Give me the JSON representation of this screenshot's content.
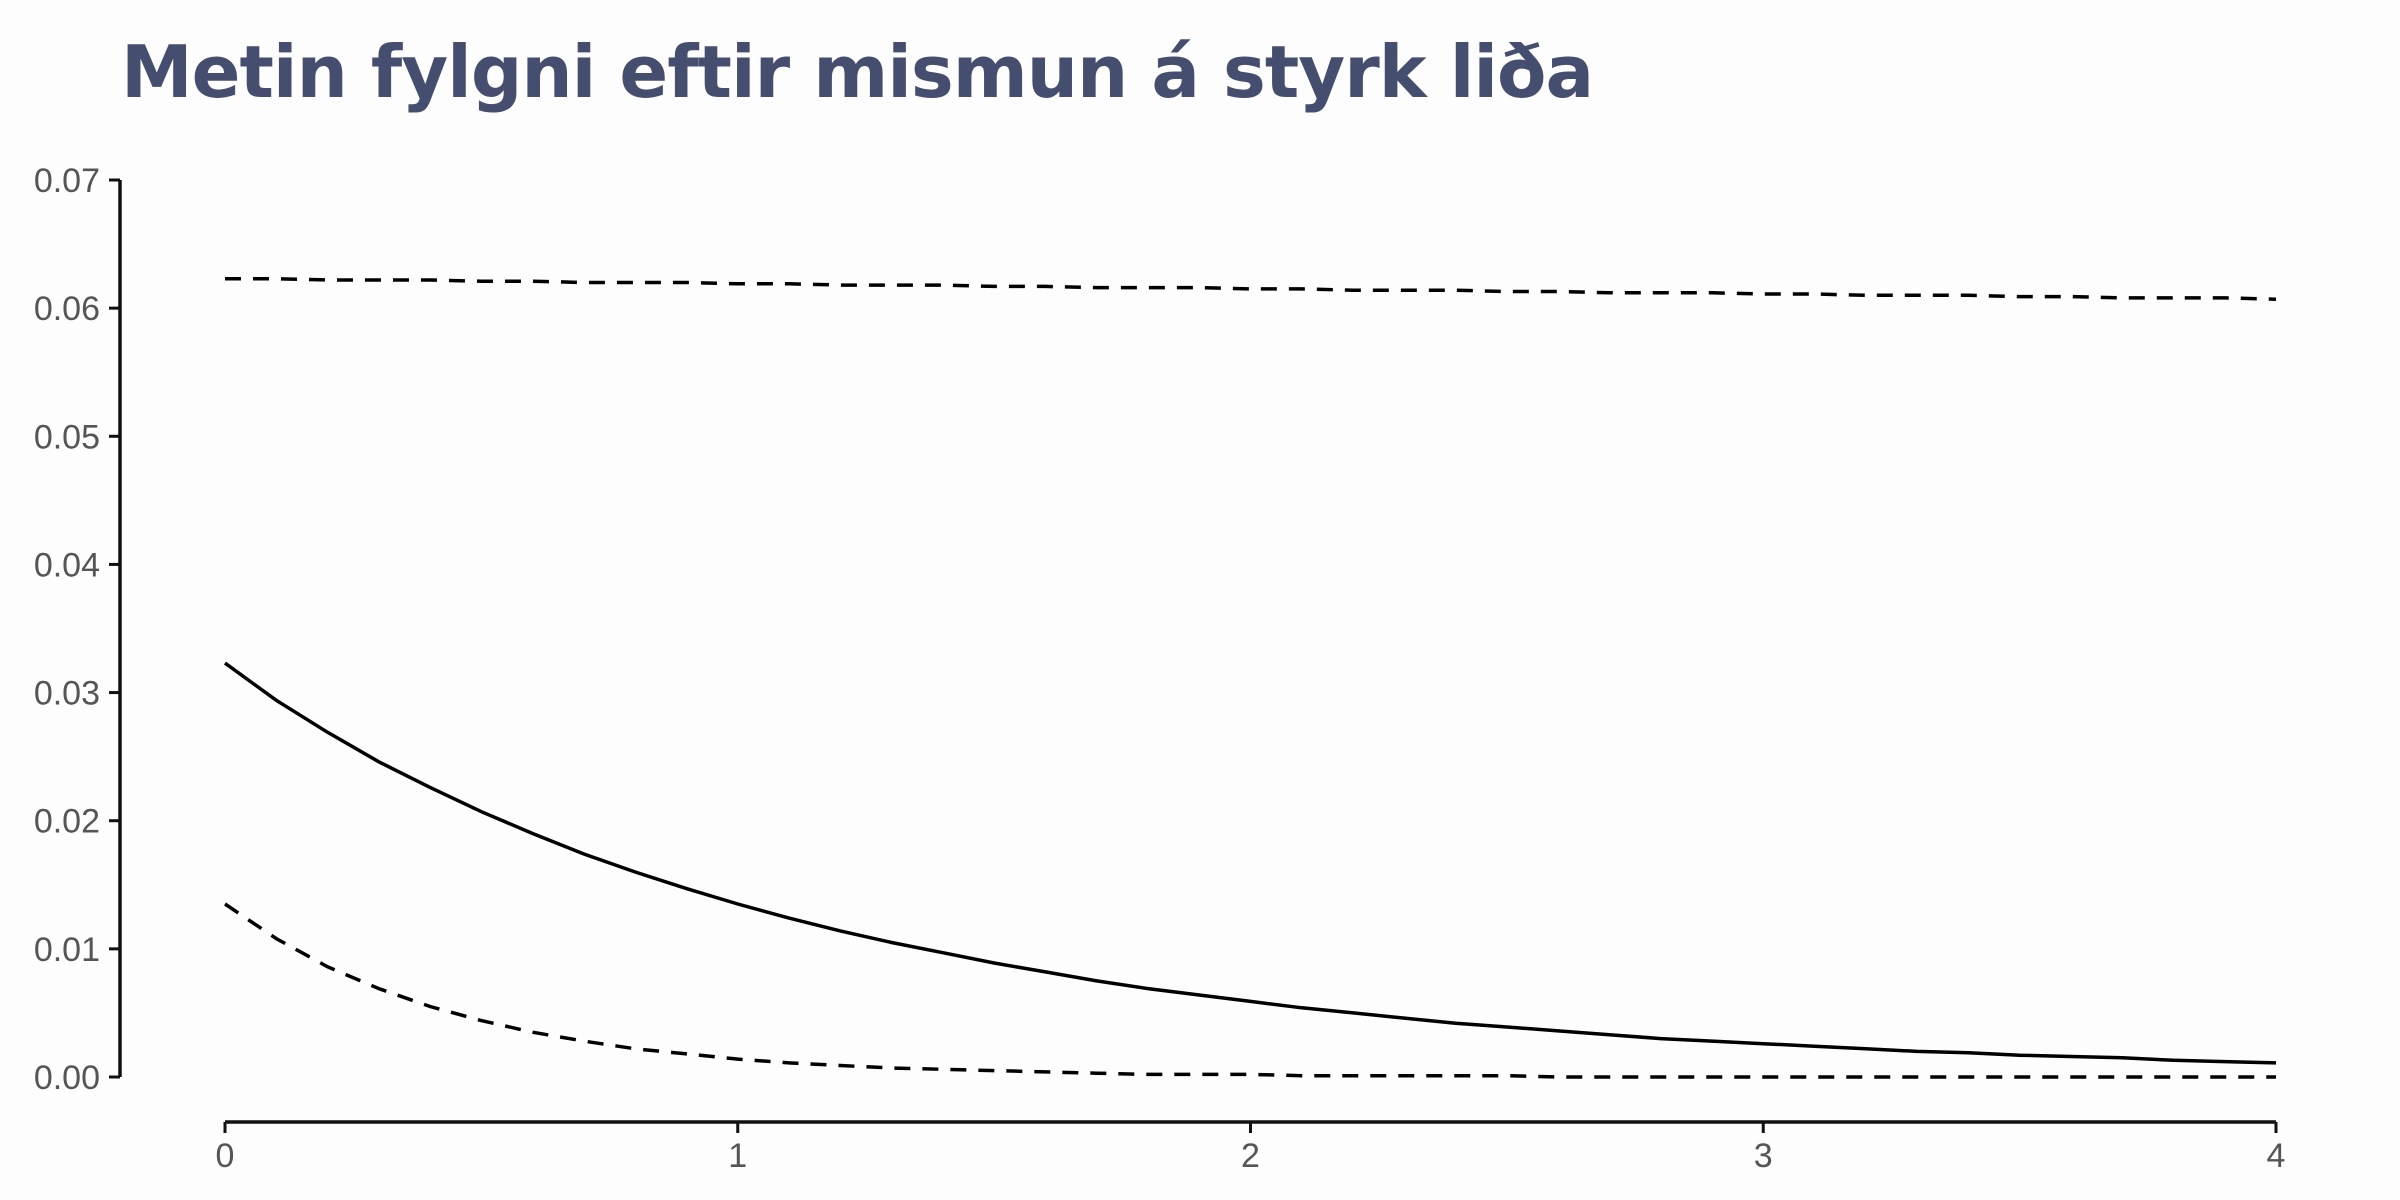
{
  "chart_data": {
    "type": "line",
    "title": "Metin fylgni eftir mismun á styrk liða",
    "xlabel": "",
    "ylabel": "",
    "xlim": [
      0,
      4
    ],
    "ylim": [
      0,
      0.07
    ],
    "x_ticks": [
      "0",
      "1",
      "2",
      "3",
      "4"
    ],
    "y_ticks": [
      "0.00",
      "0.01",
      "0.02",
      "0.03",
      "0.04",
      "0.05",
      "0.06",
      "0.07"
    ],
    "grid": false,
    "legend": "none",
    "x": [
      0,
      0.1,
      0.2,
      0.3,
      0.4,
      0.5,
      0.6,
      0.7,
      0.8,
      0.9,
      1.0,
      1.1,
      1.2,
      1.3,
      1.4,
      1.5,
      1.6,
      1.7,
      1.8,
      1.9,
      2.0,
      2.1,
      2.2,
      2.3,
      2.4,
      2.5,
      2.6,
      2.7,
      2.8,
      2.9,
      3.0,
      3.1,
      3.2,
      3.3,
      3.4,
      3.5,
      3.6,
      3.7,
      3.8,
      3.9,
      4.0
    ],
    "series": [
      {
        "style": "dashed",
        "color": "#000000",
        "values": [
          0.0623,
          0.0623,
          0.0622,
          0.0622,
          0.0622,
          0.0621,
          0.0621,
          0.062,
          0.062,
          0.062,
          0.0619,
          0.0619,
          0.0618,
          0.0618,
          0.0618,
          0.0617,
          0.0617,
          0.0616,
          0.0616,
          0.0616,
          0.0615,
          0.0615,
          0.0614,
          0.0614,
          0.0614,
          0.0613,
          0.0613,
          0.0612,
          0.0612,
          0.0612,
          0.0611,
          0.0611,
          0.061,
          0.061,
          0.061,
          0.0609,
          0.0609,
          0.0608,
          0.0608,
          0.0608,
          0.0607
        ]
      },
      {
        "style": "solid",
        "color": "#000000",
        "values": [
          0.0323,
          0.0294,
          0.0269,
          0.0246,
          0.0226,
          0.0207,
          0.019,
          0.0174,
          0.016,
          0.0147,
          0.0135,
          0.0124,
          0.0114,
          0.0105,
          0.0097,
          0.0089,
          0.0082,
          0.0075,
          0.0069,
          0.0064,
          0.0059,
          0.0054,
          0.005,
          0.0046,
          0.0042,
          0.0039,
          0.0036,
          0.0033,
          0.003,
          0.0028,
          0.0026,
          0.0024,
          0.0022,
          0.002,
          0.0019,
          0.0017,
          0.0016,
          0.0015,
          0.0013,
          0.0012,
          0.0011
        ]
      },
      {
        "style": "dashed",
        "color": "#000000",
        "values": [
          0.0135,
          0.0108,
          0.0086,
          0.0069,
          0.0055,
          0.0044,
          0.0035,
          0.0028,
          0.0022,
          0.0018,
          0.0014,
          0.0011,
          0.0009,
          0.0007,
          0.0006,
          0.0005,
          0.0004,
          0.0003,
          0.0002,
          0.0002,
          0.0002,
          0.0001,
          0.0001,
          0.0001,
          0.0001,
          0.0001,
          0.0,
          0.0,
          0.0,
          0.0,
          0.0,
          0.0,
          0.0,
          0.0,
          0.0,
          0.0,
          0.0,
          0.0,
          0.0,
          0.0,
          0.0
        ]
      }
    ]
  }
}
